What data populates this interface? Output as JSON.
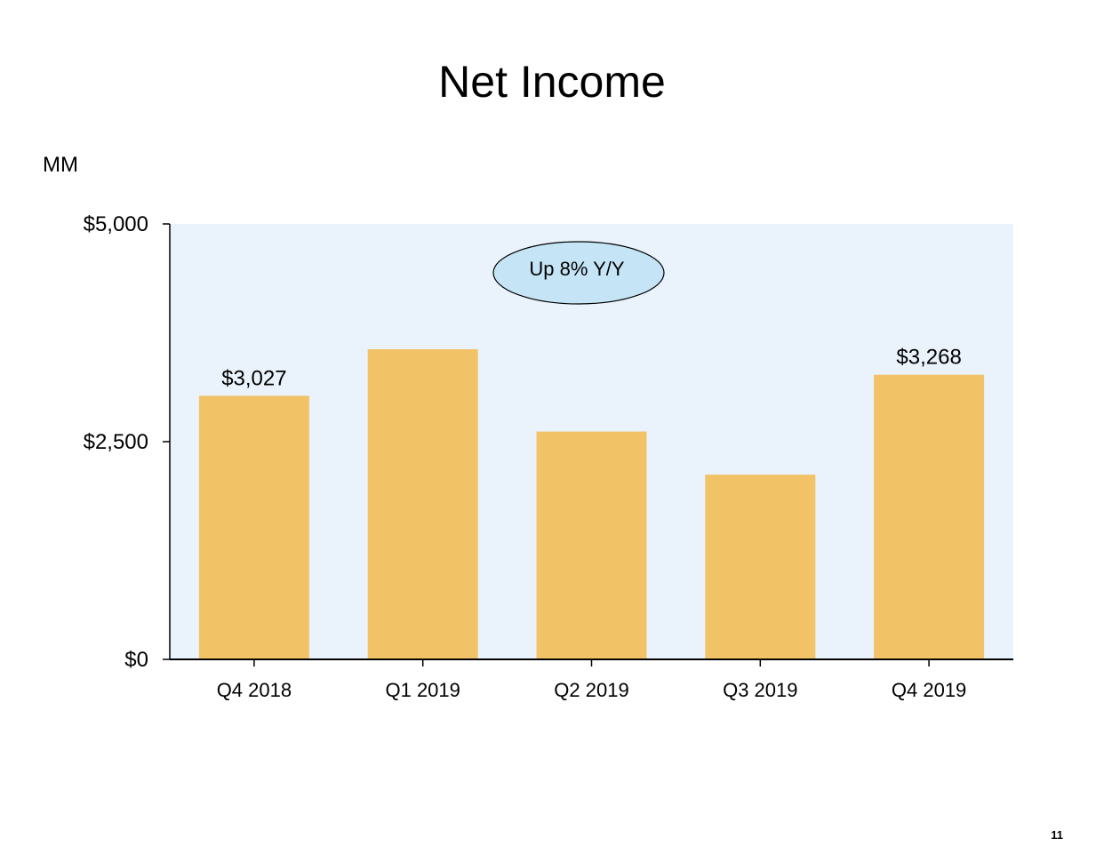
{
  "slide": {
    "title": "Net Income",
    "unit": "MM",
    "page_number": "11"
  },
  "colors": {
    "plot_background": "#eaf3fc",
    "bar": "#f2c266",
    "callout_fill": "#c5e5f7",
    "axis": "#000000"
  },
  "chart_data": {
    "type": "bar",
    "title": "Net Income",
    "ylabel": "MM",
    "xlabel": "",
    "categories": [
      "Q4 2018",
      "Q1 2019",
      "Q2 2019",
      "Q3 2019",
      "Q4 2019"
    ],
    "values": [
      3027,
      3561,
      2616,
      2121,
      3268
    ],
    "ylim": [
      0,
      5000
    ],
    "y_ticks": [
      0,
      2500,
      5000
    ],
    "y_tick_labels": [
      "$0",
      "$2,500",
      "$5,000"
    ],
    "data_labels": [
      "$3,027",
      "",
      "",
      "",
      "$3,268"
    ],
    "grid": false,
    "legend": "none",
    "annotation": "Up 8% Y/Y"
  }
}
